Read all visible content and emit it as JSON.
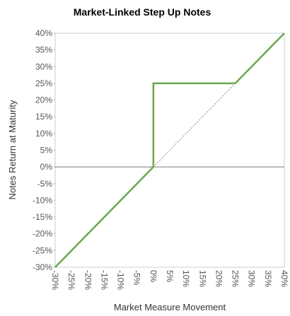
{
  "chart_data": {
    "type": "line",
    "title": "Market-Linked Step Up Notes",
    "xlabel": "Market Measure Movement",
    "ylabel": "Notes Return at Maturity",
    "xlim": [
      -30,
      40
    ],
    "ylim": [
      -30,
      40
    ],
    "x_ticks": [
      "-30%",
      "-25%",
      "-20%",
      "-15%",
      "-10%",
      "-5%",
      "0%",
      "5%",
      "10%",
      "15%",
      "20%",
      "25%",
      "30%",
      "35%",
      "40%"
    ],
    "y_ticks": [
      "40%",
      "35%",
      "30%",
      "25%",
      "20%",
      "15%",
      "10%",
      "5%",
      "0%",
      "-5%",
      "-10%",
      "-15%",
      "-20%",
      "-25%",
      "-30%"
    ],
    "grid": false,
    "series": [
      {
        "style": "solid",
        "color": "#6aa84f",
        "points": [
          [
            -30,
            -30
          ],
          [
            0,
            0
          ],
          [
            0,
            25
          ],
          [
            25,
            25
          ],
          [
            40,
            40
          ]
        ]
      },
      {
        "style": "dotted",
        "color": "#888888",
        "points": [
          [
            0,
            0
          ],
          [
            25,
            25
          ]
        ]
      }
    ]
  }
}
